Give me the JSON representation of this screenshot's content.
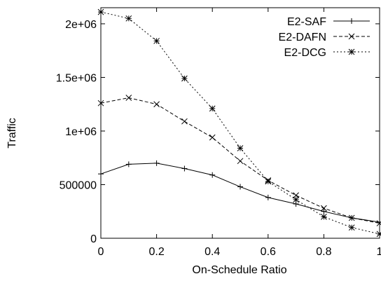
{
  "chart_data": {
    "type": "line",
    "xlabel": "On-Schedule Ratio",
    "ylabel": "Traffic",
    "xlim": [
      0,
      1
    ],
    "ylim": [
      0,
      2150000
    ],
    "x_ticks": [
      0,
      0.2,
      0.4,
      0.6,
      0.8,
      1
    ],
    "x_tick_labels": [
      "0",
      "0.2",
      "0.4",
      "0.6",
      "0.8",
      "1"
    ],
    "y_ticks": [
      0,
      500000,
      1000000,
      1500000,
      2000000
    ],
    "y_tick_labels": [
      "0",
      "500000",
      "1e+06",
      "1.5e+06",
      "2e+06"
    ],
    "grid": false,
    "legend_position": "top-right",
    "x": [
      0,
      0.1,
      0.2,
      0.3,
      0.4,
      0.5,
      0.6,
      0.7,
      0.8,
      0.9,
      1.0
    ],
    "series": [
      {
        "name": "E2-SAF",
        "marker": "plus",
        "line": "solid",
        "values": [
          600000,
          690000,
          700000,
          650000,
          590000,
          480000,
          380000,
          320000,
          250000,
          190000,
          150000
        ]
      },
      {
        "name": "E2-DAFN",
        "marker": "cross",
        "line": "dashed",
        "values": [
          1260000,
          1310000,
          1250000,
          1090000,
          940000,
          720000,
          540000,
          400000,
          280000,
          190000,
          140000
        ]
      },
      {
        "name": "E2-DCG",
        "marker": "star",
        "line": "dotted",
        "values": [
          2110000,
          2050000,
          1840000,
          1490000,
          1210000,
          840000,
          530000,
          360000,
          200000,
          100000,
          40000
        ]
      }
    ]
  }
}
